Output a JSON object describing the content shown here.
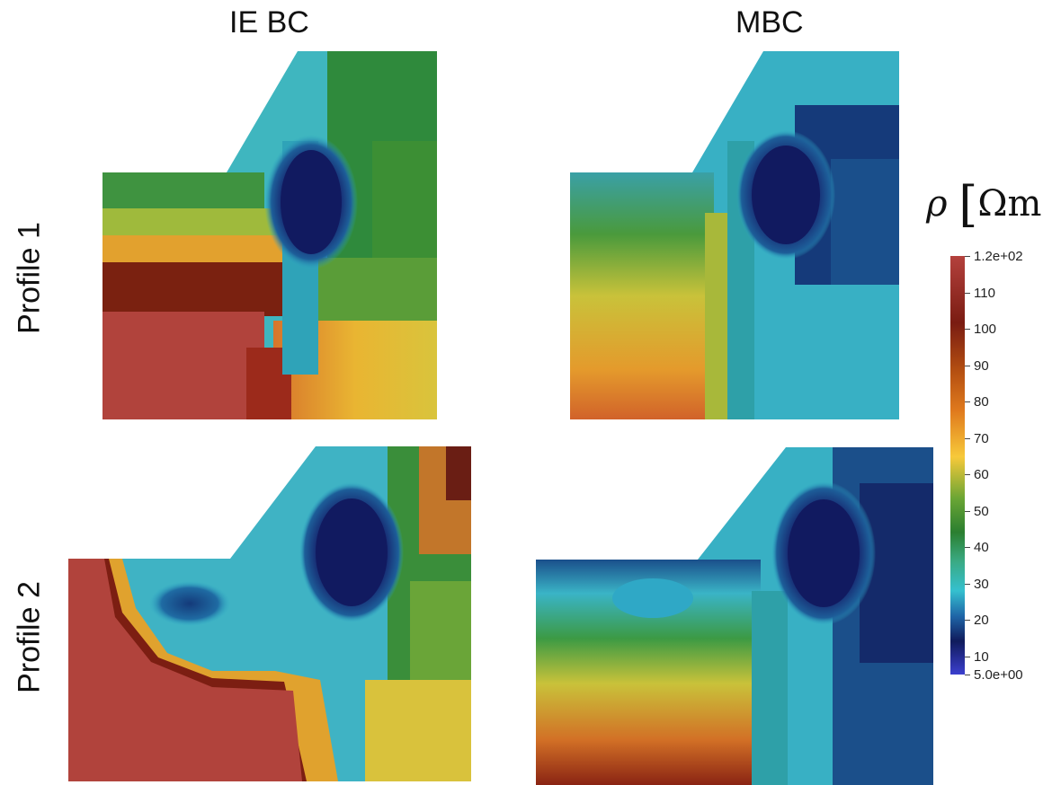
{
  "columns": [
    "IE BC",
    "MBC"
  ],
  "rows": [
    "Profile 1",
    "Profile 2"
  ],
  "colorbar": {
    "title_symbol": "ρ",
    "title_unit": "Ωm",
    "ticks": [
      "1.2e+02",
      "110",
      "100",
      "90",
      "80",
      "70",
      "60",
      "50",
      "40",
      "30",
      "20",
      "10",
      "5.0e+00"
    ],
    "colors": [
      "#b4413d",
      "#7a1c12",
      "#e07a1d",
      "#f7c93a",
      "#2b7f30",
      "#35c0cf",
      "#101b5c",
      "#3b3fcf"
    ]
  }
}
